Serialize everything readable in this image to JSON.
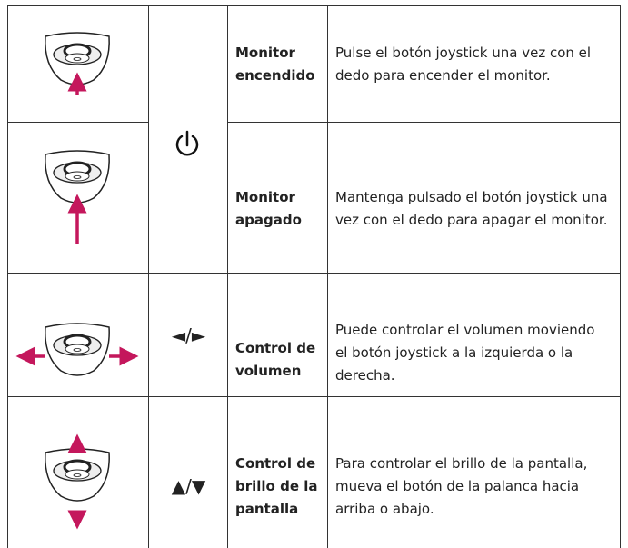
{
  "rows": [
    {
      "name": "Monitor encendido",
      "description": "Pulse el botón joystick una vez con el dedo para encender el monitor."
    },
    {
      "name": "Monitor apagado",
      "description": "Mantenga pulsado el botón joystick una vez con el dedo para apagar el monitor."
    },
    {
      "symbol": "◄/►",
      "name": "Control de volumen",
      "description": "Puede controlar el volumen moviendo el botón joystick a la izquierda o la derecha."
    },
    {
      "symbol": "▲/▼",
      "name": "Control de brillo de la pantalla",
      "description": "Para controlar el brillo de la pantalla, mueva el botón de la palanca hacia arriba o abajo."
    }
  ]
}
